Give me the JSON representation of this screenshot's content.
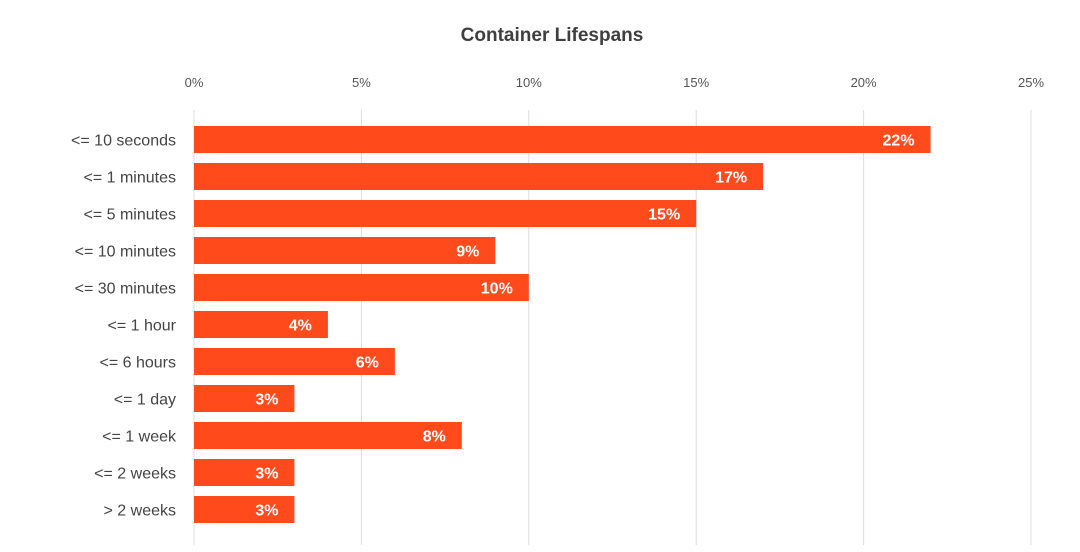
{
  "chart_data": {
    "type": "bar",
    "orientation": "horizontal",
    "title": "Container Lifespans",
    "xlabel": "",
    "ylabel": "",
    "x_ticks": [
      "0%",
      "5%",
      "10%",
      "15%",
      "20%",
      "25%"
    ],
    "xlim": [
      0,
      25
    ],
    "grid": true,
    "categories": [
      "<= 10 seconds",
      "<= 1 minutes",
      "<= 5 minutes",
      "<= 10 minutes",
      "<= 30 minutes",
      "<= 1 hour",
      "<= 6 hours",
      "<= 1 day",
      "<= 1 week",
      "<= 2 weeks",
      "> 2 weeks"
    ],
    "values": [
      22,
      17,
      15,
      9,
      10,
      4,
      6,
      3,
      8,
      3,
      3
    ],
    "data_labels": [
      "22%",
      "17%",
      "15%",
      "9%",
      "10%",
      "4%",
      "6%",
      "3%",
      "8%",
      "3%",
      "3%"
    ],
    "bar_color": "#ff4a1c",
    "label_color": "#ffffff"
  }
}
